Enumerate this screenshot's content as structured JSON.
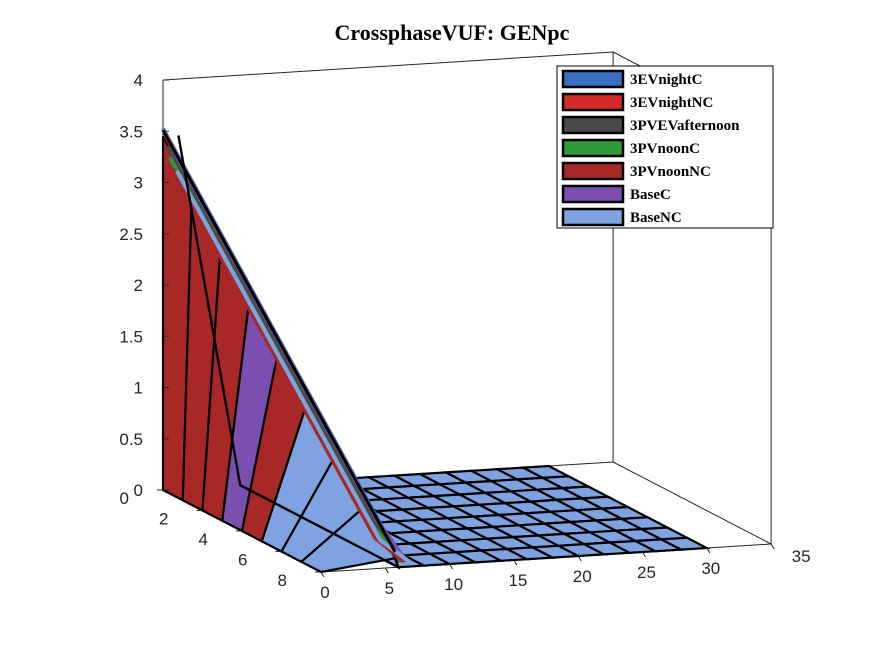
{
  "chart_data": {
    "type": "3d-surface",
    "title": "CrossphaseVUF: GENpc",
    "xlabel": "",
    "ylabel": "",
    "zlabel": "",
    "x_ticks": [
      "0",
      "5",
      "10",
      "15",
      "20",
      "25",
      "30",
      "35"
    ],
    "y_ticks": [
      "0",
      "2",
      "4",
      "6",
      "8"
    ],
    "z_ticks": [
      "0",
      "0.5",
      "1",
      "1.5",
      "2",
      "2.5",
      "3",
      "3.5",
      "4"
    ],
    "xlim": [
      0,
      35
    ],
    "ylim": [
      0,
      8
    ],
    "zlim": [
      0,
      4
    ],
    "grid": false,
    "legend_position": "top-right",
    "series": [
      {
        "name": "3EVnightC",
        "color": "#3b6fc2",
        "peak": 3.5
      },
      {
        "name": "3EVnightNC",
        "color": "#d42a2a",
        "peak": 3.45
      },
      {
        "name": "3PVEVafternoon",
        "color": "#4a4a4a",
        "peak": 3.35
      },
      {
        "name": "3PVnoonC",
        "color": "#2e9a3a",
        "peak": 3.25
      },
      {
        "name": "3PVnoonNC",
        "color": "#a82828",
        "peak": 3.15
      },
      {
        "name": "BaseC",
        "color": "#7a4fb0",
        "peak": 3.3
      },
      {
        "name": "BaseNC",
        "color": "#7ea3e0",
        "peak": 3.1
      }
    ]
  }
}
